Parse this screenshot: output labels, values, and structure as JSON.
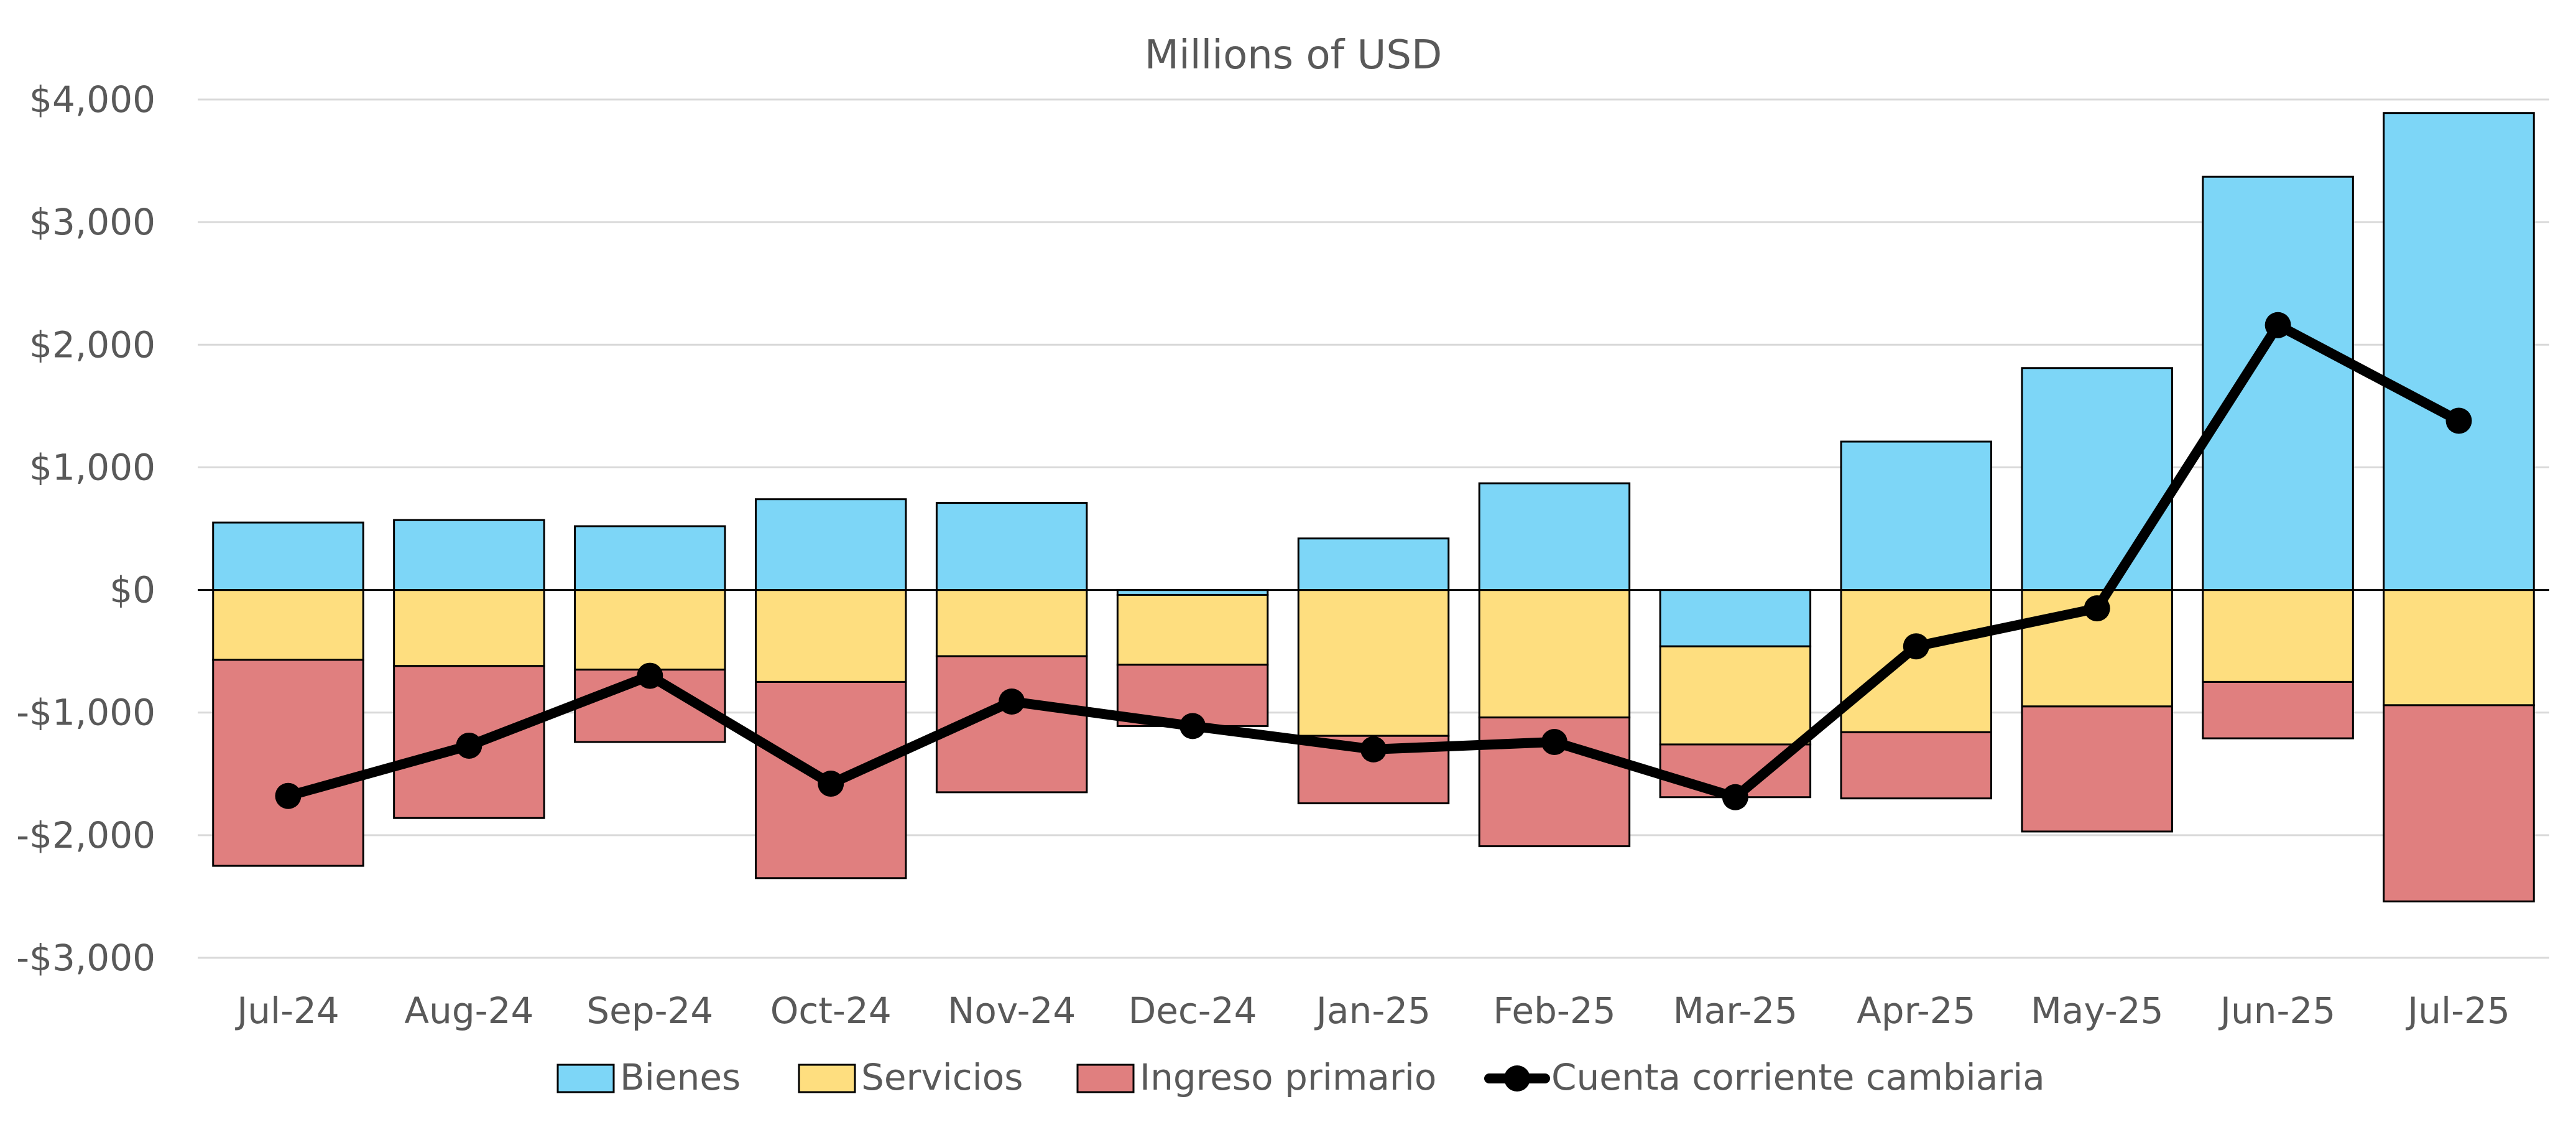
{
  "chart_data": {
    "type": "bar",
    "stacked": true,
    "title": "Millions of USD",
    "xlabel": "",
    "ylabel": "",
    "categories": [
      "Jul-24",
      "Aug-24",
      "Sep-24",
      "Oct-24",
      "Nov-24",
      "Dec-24",
      "Jan-25",
      "Feb-25",
      "Mar-25",
      "Apr-25",
      "May-25",
      "Jun-25",
      "Jul-25"
    ],
    "ylim": [
      -3000,
      4000
    ],
    "yticks": [
      -3000,
      -2000,
      -1000,
      0,
      1000,
      2000,
      3000,
      4000
    ],
    "ytick_labels": [
      "-$3,000",
      "-$2,000",
      "-$1,000",
      "$0",
      "$1,000",
      "$2,000",
      "$3,000",
      "$4,000"
    ],
    "grid": "horizontal",
    "legend_position": "bottom",
    "series": [
      {
        "name": "Bienes",
        "kind": "bar",
        "color": "#7dd6f7",
        "values": [
          550,
          570,
          520,
          740,
          710,
          -40,
          420,
          870,
          -460,
          1210,
          1810,
          3370,
          3890
        ]
      },
      {
        "name": "Servicios",
        "kind": "bar",
        "color": "#fede7f",
        "values": [
          -570,
          -620,
          -650,
          -750,
          -540,
          -570,
          -1190,
          -1040,
          -800,
          -1160,
          -950,
          -750,
          -940
        ]
      },
      {
        "name": "Ingreso primario",
        "kind": "bar",
        "color": "#e07f7f",
        "values": [
          -1680,
          -1240,
          -590,
          -1600,
          -1110,
          -500,
          -550,
          -1050,
          -430,
          -540,
          -1020,
          -460,
          -1600
        ]
      },
      {
        "name": "Cuenta corriente cambiaria",
        "kind": "line",
        "color": "#000000",
        "values": [
          -1680,
          -1270,
          -700,
          -1580,
          -910,
          -1110,
          -1300,
          -1240,
          -1690,
          -460,
          -150,
          2160,
          1380
        ]
      }
    ]
  }
}
